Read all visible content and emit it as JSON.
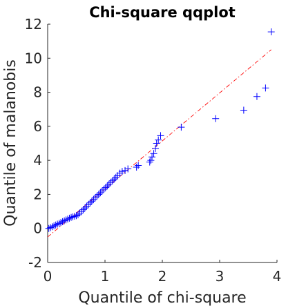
{
  "chart_data": {
    "type": "scatter",
    "title": "Chi-square qqplot",
    "xlabel": "Quantile of chi-square",
    "ylabel": "Quantile of malanobis",
    "xlim": [
      0,
      4
    ],
    "ylim": [
      -2,
      12
    ],
    "xticks": [
      0,
      1,
      2,
      3,
      4
    ],
    "yticks": [
      -2,
      0,
      2,
      4,
      6,
      8,
      10,
      12
    ],
    "grid": false,
    "marker": "plus",
    "marker_color": "#0000ff",
    "reference_line": {
      "style": "dash-dot",
      "color": "#ff0000",
      "x": [
        0,
        3.9
      ],
      "y": [
        -0.5,
        10.5
      ]
    },
    "x": [
      0.02,
      0.05,
      0.08,
      0.11,
      0.14,
      0.17,
      0.2,
      0.23,
      0.26,
      0.29,
      0.32,
      0.35,
      0.38,
      0.41,
      0.44,
      0.47,
      0.5,
      0.53,
      0.56,
      0.59,
      0.62,
      0.65,
      0.68,
      0.71,
      0.74,
      0.77,
      0.8,
      0.83,
      0.86,
      0.89,
      0.92,
      0.95,
      0.98,
      1.01,
      1.04,
      1.07,
      1.1,
      1.13,
      1.16,
      1.19,
      1.22,
      1.26,
      1.3,
      1.35,
      1.4,
      1.55,
      1.58,
      1.78,
      1.8,
      1.82,
      1.85,
      1.88,
      1.9,
      1.93,
      1.97,
      2.33,
      2.93,
      3.42,
      3.65,
      3.8,
      3.9
    ],
    "y": [
      0.0,
      0.05,
      0.1,
      0.15,
      0.2,
      0.25,
      0.3,
      0.35,
      0.4,
      0.45,
      0.5,
      0.55,
      0.6,
      0.65,
      0.68,
      0.72,
      0.75,
      0.8,
      0.9,
      1.0,
      1.1,
      1.2,
      1.3,
      1.4,
      1.5,
      1.6,
      1.7,
      1.8,
      1.9,
      2.0,
      2.1,
      2.2,
      2.3,
      2.4,
      2.5,
      2.6,
      2.7,
      2.8,
      2.9,
      3.0,
      3.1,
      3.25,
      3.35,
      3.4,
      3.5,
      3.6,
      3.7,
      3.9,
      4.0,
      4.2,
      4.4,
      4.7,
      5.0,
      5.2,
      5.45,
      5.95,
      6.45,
      6.95,
      7.75,
      8.25,
      11.55
    ]
  }
}
